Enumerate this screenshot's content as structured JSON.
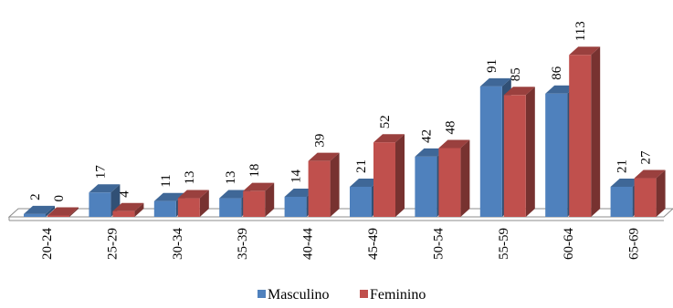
{
  "chart_data": {
    "type": "bar",
    "categories": [
      "20-24",
      "25-29",
      "30-34",
      "35-39",
      "40-44",
      "45-49",
      "50-54",
      "55-59",
      "60-64",
      "65-69"
    ],
    "series": [
      {
        "name": "Masculino",
        "values": [
          2,
          17,
          11,
          13,
          14,
          21,
          42,
          91,
          86,
          21
        ],
        "color": "#4f81bd"
      },
      {
        "name": "Feminino",
        "values": [
          0,
          4,
          13,
          18,
          39,
          52,
          48,
          85,
          113,
          27
        ],
        "color": "#c0504d"
      }
    ],
    "ylim": [
      0,
      120
    ],
    "grid": false,
    "legend": "bottom",
    "style": "3d-clustered-column"
  }
}
